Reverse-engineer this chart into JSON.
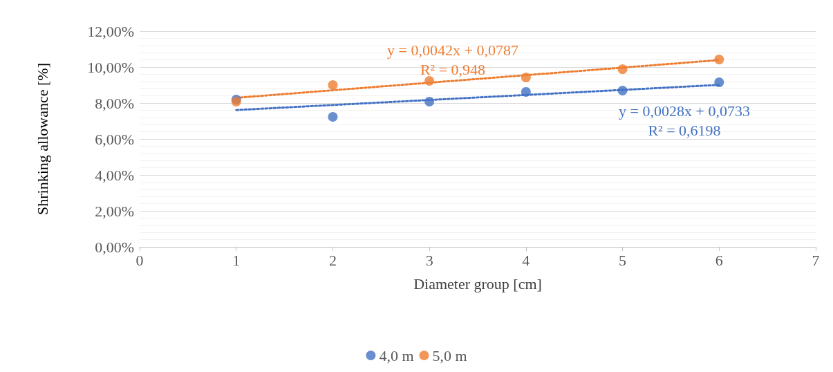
{
  "chart_data": {
    "type": "scatter",
    "xlabel": "Diameter group [cm]",
    "ylabel": "Shrinking allowance [%]",
    "xlim": [
      0,
      7
    ],
    "xticks": [
      0,
      1,
      2,
      3,
      4,
      5,
      6,
      7
    ],
    "ylim": [
      0,
      12
    ],
    "yticks": [
      {
        "value": 0,
        "label": "0,00%"
      },
      {
        "value": 2,
        "label": "2,00%"
      },
      {
        "value": 4,
        "label": "4,00%"
      },
      {
        "value": 6,
        "label": "6,00%"
      },
      {
        "value": 8,
        "label": "8,00%"
      },
      {
        "value": 10,
        "label": "10,00%"
      },
      {
        "value": 12,
        "label": "12,00%"
      }
    ],
    "grid": "y",
    "legend": "bottom",
    "marker": "circle",
    "series": [
      {
        "name": "4,0 m",
        "color": "#4472c4",
        "x": [
          1,
          2,
          3,
          4,
          5,
          6
        ],
        "values": [
          8.19,
          7.23,
          8.08,
          8.62,
          8.69,
          9.15
        ]
      },
      {
        "name": "5,0 m",
        "color": "#ed7d31",
        "x": [
          1,
          2,
          3,
          4,
          5,
          6
        ],
        "values": [
          8.08,
          9.0,
          9.23,
          9.42,
          9.88,
          10.42
        ]
      },
      {
        "type": "line",
        "color": "#4472c4",
        "line_style": "dotted",
        "marker": "none",
        "x": [
          1,
          6
        ],
        "values": [
          7.61,
          9.01
        ]
      },
      {
        "type": "line",
        "color": "#ed7d31",
        "line_style": "dotted",
        "marker": "none",
        "x": [
          1,
          6
        ],
        "values": [
          8.29,
          10.39
        ]
      }
    ],
    "annotations": [
      "y = 0,0028x + 0,0733\nR² = 0,6198",
      "y = 0,0042x + 0,0787\nR² = 0,948"
    ]
  }
}
